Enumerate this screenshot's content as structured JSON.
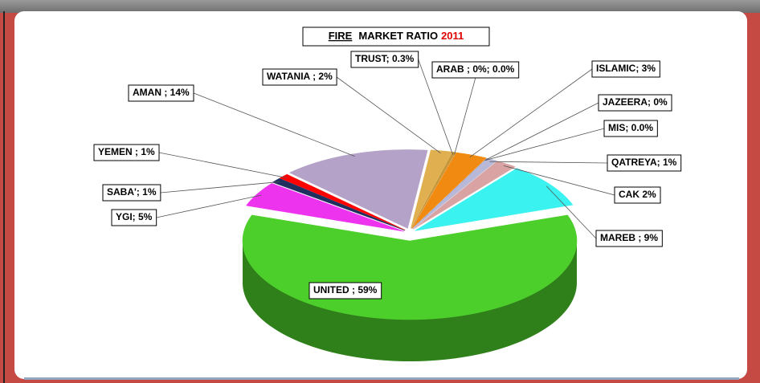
{
  "chart_data": {
    "type": "pie3d",
    "title_parts": [
      "FIRE",
      "MARKET RATIO",
      "2011"
    ],
    "values": [
      59,
      9,
      2,
      1,
      0.0,
      0,
      3,
      0,
      0.3,
      2,
      14,
      1,
      1,
      5
    ],
    "value_labels": [
      "UNITED ; 59%",
      "MAREB ; 9%",
      "CAK  2%",
      "QATREYA; 1%",
      "MIS; 0.0%",
      "JAZEERA; 0%",
      "ISLAMIC; 3%",
      "ARAB ; 0%; 0.0%",
      "TRUST; 0.3%",
      "WATANIA  ; 2%",
      "AMAN  ; 14%",
      "YEMEN  ; 1%",
      "SABA'; 1%",
      "YGI; 5%"
    ],
    "colors": [
      "#4ccf2a",
      "#3af2f0",
      "#d9a3a3",
      "#b8b8d8",
      "#a9c4e0",
      "#9494c4",
      "#f08a10",
      "#b07030",
      "#c89838",
      "#e0b050",
      "#b4a2c8",
      "#ff0000",
      "#1f2f5f",
      "#ee33ee"
    ]
  }
}
